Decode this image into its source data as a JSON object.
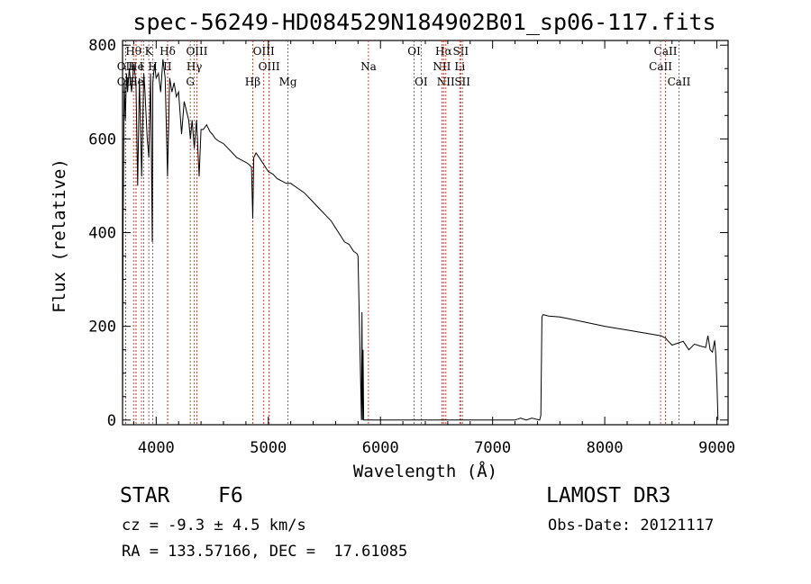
{
  "chart_data": {
    "type": "line",
    "title": "spec-56249-HD084529N184902B01_sp06-117.fits",
    "xlabel": "Wavelength (Å)",
    "ylabel": "Flux (relative)",
    "xlim": [
      3700,
      9100
    ],
    "ylim": [
      -10,
      810
    ],
    "xticks": [
      4000,
      5000,
      6000,
      7000,
      8000,
      9000
    ],
    "yticks": [
      0,
      200,
      400,
      600,
      800
    ],
    "series": [
      {
        "name": "flux",
        "x": [
          3700,
          3705,
          3715,
          3725,
          3735,
          3745,
          3760,
          3780,
          3800,
          3820,
          3835,
          3850,
          3870,
          3890,
          3900,
          3920,
          3935,
          3950,
          3965,
          3970,
          3985,
          4000,
          4020,
          4040,
          4060,
          4080,
          4101,
          4120,
          4140,
          4160,
          4180,
          4200,
          4226,
          4250,
          4270,
          4290,
          4305,
          4320,
          4340,
          4360,
          4383,
          4400,
          4420,
          4450,
          4480,
          4500,
          4530,
          4560,
          4600,
          4640,
          4680,
          4720,
          4760,
          4800,
          4830,
          4850,
          4861,
          4870,
          4890,
          4920,
          4960,
          5000,
          5040,
          5080,
          5120,
          5160,
          5200,
          5260,
          5320,
          5380,
          5440,
          5500,
          5560,
          5600,
          5640,
          5680,
          5720,
          5760,
          5790,
          5800,
          5820,
          5830,
          5835,
          5840,
          5845,
          5850,
          5870,
          5900,
          6000,
          6500,
          7000,
          7200,
          7250,
          7300,
          7350,
          7420,
          7430,
          7440,
          7450,
          7500,
          7600,
          7700,
          7800,
          7900,
          8000,
          8100,
          8200,
          8300,
          8400,
          8500,
          8542,
          8560,
          8600,
          8662,
          8700,
          8750,
          8800,
          8850,
          8900,
          8920,
          8940,
          8960,
          8980,
          8990,
          9000,
          9010
        ],
        "values": [
          20,
          420,
          720,
          640,
          740,
          700,
          750,
          700,
          760,
          720,
          500,
          730,
          520,
          740,
          700,
          600,
          560,
          740,
          380,
          720,
          760,
          730,
          740,
          700,
          770,
          730,
          520,
          730,
          700,
          720,
          690,
          700,
          610,
          680,
          660,
          640,
          600,
          640,
          580,
          640,
          520,
          620,
          620,
          630,
          615,
          610,
          600,
          595,
          590,
          580,
          570,
          560,
          555,
          550,
          545,
          540,
          430,
          560,
          570,
          560,
          545,
          530,
          525,
          515,
          510,
          505,
          505,
          495,
          485,
          470,
          455,
          440,
          425,
          410,
          395,
          380,
          375,
          360,
          355,
          350,
          120,
          0,
          230,
          0,
          150,
          0,
          0,
          0,
          0,
          0,
          0,
          0,
          4,
          0,
          4,
          0,
          10,
          220,
          225,
          222,
          220,
          215,
          210,
          205,
          200,
          196,
          192,
          188,
          184,
          180,
          175,
          170,
          160,
          165,
          168,
          150,
          162,
          158,
          155,
          180,
          150,
          145,
          170,
          140,
          80,
          0
        ]
      }
    ],
    "lines": [
      {
        "label": "Hθ",
        "x": 3798,
        "row": 0
      },
      {
        "label": "K",
        "x": 3934,
        "row": 0
      },
      {
        "label": "Hδ",
        "x": 4102,
        "row": 0
      },
      {
        "label": "OIII",
        "x": 4363,
        "row": 0
      },
      {
        "label": "OIII",
        "x": 4959,
        "row": 0
      },
      {
        "label": "OI",
        "x": 6300,
        "row": 0
      },
      {
        "label": "Hα",
        "x": 6563,
        "row": 0
      },
      {
        "label": "SII",
        "x": 6716,
        "row": 0
      },
      {
        "label": "CaII",
        "x": 8542,
        "row": 0
      },
      {
        "label": "OII",
        "x": 3727,
        "row": 1
      },
      {
        "label": "He",
        "x": 3820,
        "row": 1
      },
      {
        "label": "I",
        "x": 3869,
        "row": 1
      },
      {
        "label": "H",
        "x": 3970,
        "row": 1
      },
      {
        "label": "II",
        "x": 4101,
        "row": 1
      },
      {
        "label": "Hγ",
        "x": 4340,
        "row": 1
      },
      {
        "label": "OIII",
        "x": 5007,
        "row": 1
      },
      {
        "label": "Na",
        "x": 5893,
        "row": 1
      },
      {
        "label": "NII",
        "x": 6548,
        "row": 1
      },
      {
        "label": "Li",
        "x": 6708,
        "row": 1
      },
      {
        "label": "CaII",
        "x": 8498,
        "row": 1
      },
      {
        "label": "OII",
        "x": 3727,
        "row": 2
      },
      {
        "label": "He",
        "x": 3820,
        "row": 2
      },
      {
        "label": "I",
        "x": 3889,
        "row": 2
      },
      {
        "label": "G",
        "x": 4304,
        "row": 2
      },
      {
        "label": "Hβ",
        "x": 4861,
        "row": 2
      },
      {
        "label": "Mg",
        "x": 5175,
        "row": 2
      },
      {
        "label": "OI",
        "x": 6363,
        "row": 2
      },
      {
        "label": "NII",
        "x": 6583,
        "row": 2
      },
      {
        "label": "SII",
        "x": 6731,
        "row": 2
      },
      {
        "label": "CaII",
        "x": 8662,
        "row": 2
      }
    ]
  },
  "info": {
    "object_class": "STAR",
    "subclass": "F6",
    "survey": "LAMOST DR3",
    "velocity": "cz = -9.3 ± 4.5 km/s",
    "obs_date": "Obs-Date: 20121117",
    "coords": "RA = 133.57166, DEC =  17.61085"
  }
}
